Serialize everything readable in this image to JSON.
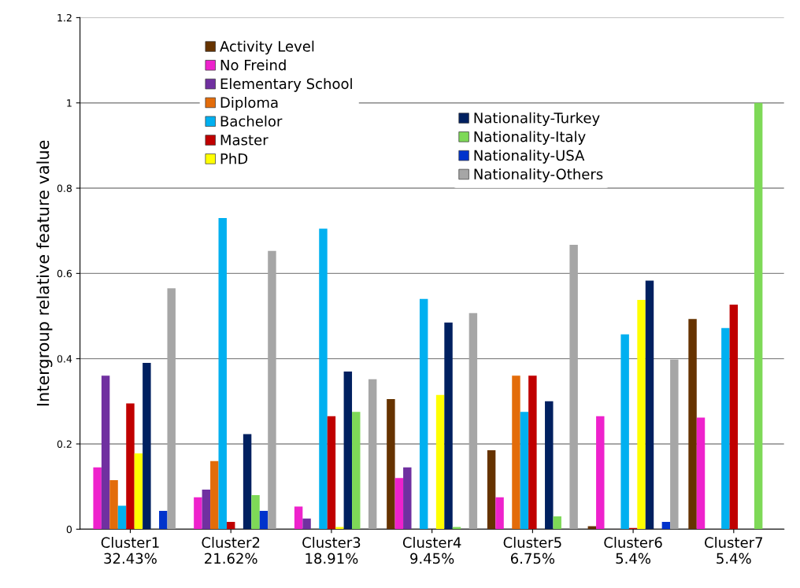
{
  "chart_data": {
    "type": "bar",
    "ylabel": "Intergroup relative feature value",
    "categories": [
      "Cluster1\n32.43%",
      "Cluster2\n21.62%",
      "Cluster3\n18.91%",
      "Cluster4\n9.45%",
      "Cluster5\n6.75%",
      "Cluster6\n5.4%",
      "Cluster7\n5.4%"
    ],
    "series": [
      {
        "name": "Activity Level",
        "color": "#663300",
        "values": [
          0,
          0,
          0,
          0.305,
          0.185,
          0.007,
          0.493
        ]
      },
      {
        "name": "No Freind",
        "color": "#ee22cc",
        "values": [
          0.145,
          0.075,
          0.053,
          0.12,
          0.075,
          0.265,
          0.262
        ]
      },
      {
        "name": "Elementary School",
        "color": "#7030a0",
        "values": [
          0.36,
          0.093,
          0.025,
          0.145,
          0,
          0,
          0
        ]
      },
      {
        "name": "Diploma",
        "color": "#e36c0a",
        "values": [
          0.115,
          0.16,
          0,
          0,
          0.36,
          0,
          0
        ]
      },
      {
        "name": "Bachelor",
        "color": "#00b0f0",
        "values": [
          0.055,
          0.73,
          0.705,
          0.54,
          0.275,
          0.457,
          0.472
        ]
      },
      {
        "name": "Master",
        "color": "#c00000",
        "values": [
          0.295,
          0.017,
          0.265,
          0,
          0.36,
          0.003,
          0.527
        ]
      },
      {
        "name": "PhD",
        "color": "#ffff00",
        "values": [
          0.178,
          0,
          0.005,
          0.315,
          0,
          0.538,
          0
        ]
      },
      {
        "name": "Nationality-Turkey",
        "color": "#002060",
        "values": [
          0.39,
          0.223,
          0.37,
          0.485,
          0.3,
          0.583,
          0
        ]
      },
      {
        "name": "Nationality-Italy",
        "color": "#7ed957",
        "values": [
          0,
          0.08,
          0.275,
          0.005,
          0.03,
          0,
          1.0
        ]
      },
      {
        "name": "Nationality-USA",
        "color": "#0033cc",
        "values": [
          0.043,
          0.043,
          0,
          0,
          0,
          0.017,
          0
        ]
      },
      {
        "name": "Nationality-Others",
        "color": "#a6a6a6",
        "values": [
          0.565,
          0.653,
          0.352,
          0.507,
          0.667,
          0.398,
          0
        ]
      }
    ],
    "ylim": [
      0,
      1.2
    ],
    "yticks": [
      0,
      0.2,
      0.4,
      0.6,
      0.8,
      1,
      1.2
    ],
    "grid": "y",
    "legend": "top left"
  }
}
